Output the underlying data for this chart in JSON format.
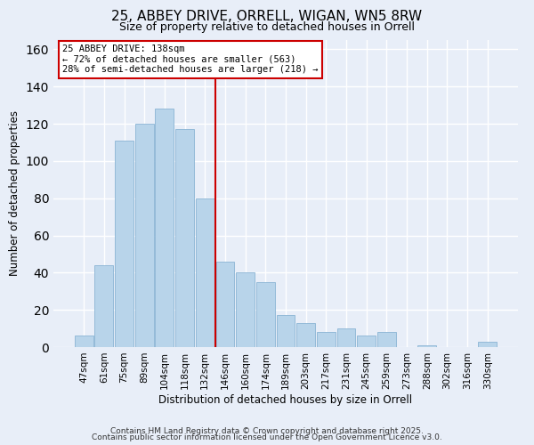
{
  "title": "25, ABBEY DRIVE, ORRELL, WIGAN, WN5 8RW",
  "subtitle": "Size of property relative to detached houses in Orrell",
  "xlabel": "Distribution of detached houses by size in Orrell",
  "ylabel": "Number of detached properties",
  "categories": [
    "47sqm",
    "61sqm",
    "75sqm",
    "89sqm",
    "104sqm",
    "118sqm",
    "132sqm",
    "146sqm",
    "160sqm",
    "174sqm",
    "189sqm",
    "203sqm",
    "217sqm",
    "231sqm",
    "245sqm",
    "259sqm",
    "273sqm",
    "288sqm",
    "302sqm",
    "316sqm",
    "330sqm"
  ],
  "values": [
    6,
    44,
    111,
    120,
    128,
    117,
    80,
    46,
    40,
    35,
    17,
    13,
    8,
    10,
    6,
    8,
    0,
    1,
    0,
    0,
    3
  ],
  "bar_color": "#b8d4ea",
  "bar_edge_color": "#8ab4d4",
  "vline_x_index": 7,
  "vline_color": "#cc0000",
  "annotation_text": "25 ABBEY DRIVE: 138sqm\n← 72% of detached houses are smaller (563)\n28% of semi-detached houses are larger (218) →",
  "annotation_box_color": "#ffffff",
  "annotation_box_edge_color": "#cc0000",
  "ylim": [
    0,
    165
  ],
  "footer_line1": "Contains HM Land Registry data © Crown copyright and database right 2025.",
  "footer_line2": "Contains public sector information licensed under the Open Government Licence v3.0.",
  "background_color": "#e8eef8",
  "grid_color": "#ffffff",
  "title_fontsize": 11,
  "subtitle_fontsize": 9,
  "tick_fontsize": 7.5,
  "axis_label_fontsize": 8.5,
  "footer_fontsize": 6.5
}
